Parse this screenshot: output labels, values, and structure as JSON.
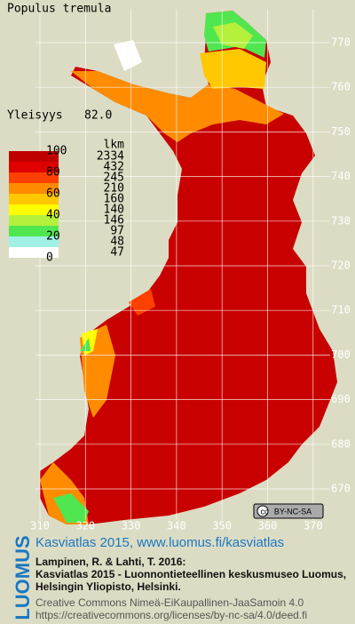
{
  "header": {
    "species": "Populus tremula",
    "frequency_label": "Yleisyys",
    "frequency_value": "82.0"
  },
  "legend": {
    "scale": [
      "100",
      "80",
      "60",
      "40",
      "20",
      "0"
    ],
    "count_header": "lkm",
    "counts": [
      "2334",
      "432",
      "245",
      "210",
      "160",
      "140",
      "146",
      "97",
      "48",
      "47"
    ],
    "colors": [
      "#c00000",
      "#e00000",
      "#ff4000",
      "#ff8c00",
      "#ffc800",
      "#ffff00",
      "#b4f03c",
      "#50e650",
      "#a0f0e6",
      "#ffffff"
    ]
  },
  "axes": {
    "x": [
      "310",
      "320",
      "330",
      "340",
      "350",
      "360",
      "370"
    ],
    "y": [
      "770",
      "760",
      "750",
      "740",
      "730",
      "720",
      "710",
      "700",
      "690",
      "680",
      "670"
    ]
  },
  "license_badge": "BY-NC-SA",
  "footer": {
    "logo": "LUOMUS",
    "link": "Kasviatlas 2015, www.luomus.fi/kasviatlas",
    "citation": [
      "Lampinen, R. & Lahti, T. 2016:",
      "Kasviatlas 2015 - Luonnontieteellinen keskusmuseo Luomus,",
      "Helsingin Yliopisto, Helsinki."
    ],
    "license": [
      "Creative Commons Nimeä-EiKaupallinen-JaaSamoin 4.0",
      "https://creativecommons.org/licenses/by-nc-sa/4.0/deed.fi"
    ]
  }
}
